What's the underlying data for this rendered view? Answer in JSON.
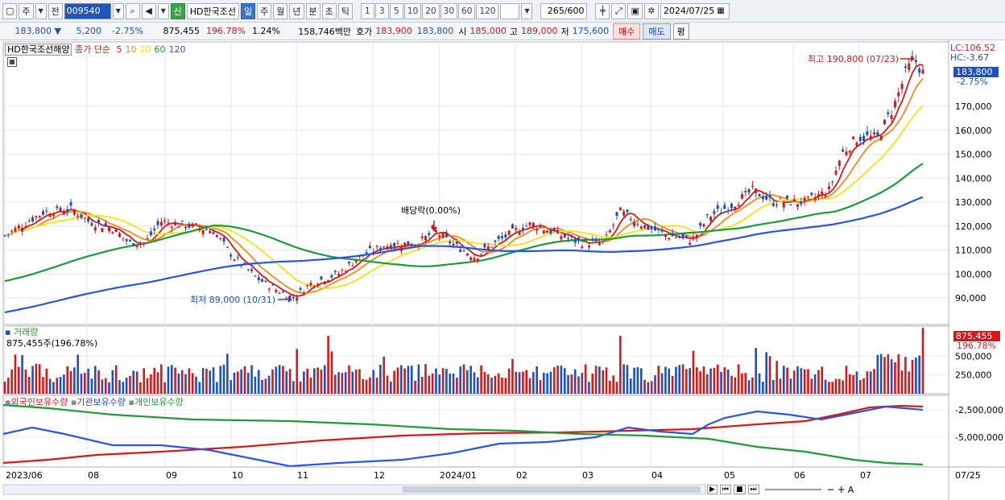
{
  "toolbar": {
    "market": "주",
    "prev_label": "전",
    "code": "009540",
    "badge": "신",
    "stock_name": "HD한국조선",
    "periods": [
      "일",
      "주",
      "월",
      "년",
      "분",
      "초",
      "틱"
    ],
    "active_period": "일",
    "intervals": [
      "1",
      "3",
      "5",
      "10",
      "20",
      "30",
      "60",
      "120"
    ],
    "count": "265",
    "count_total": "/600",
    "date": "2024/07/25"
  },
  "quote": {
    "price": "183,800",
    "arrow": "▼",
    "change": "5,200",
    "change_pct": "-2.75%",
    "volume": "875,455",
    "volume_ratio": "196.78%",
    "turnover": "1.24%",
    "amount": "158,746백만",
    "bid_label": "호가",
    "ask": "183,900",
    "bid": "183,800",
    "open_label": "시",
    "open": "185,000",
    "high_label": "고",
    "high": "189,000",
    "low_label": "저",
    "low": "175,600",
    "buy_label": "매수",
    "sell_label": "매도",
    "pin_label": "평"
  },
  "price_panel": {
    "name": "HD한국조선해양",
    "ma_title": "종가 단순",
    "ma_periods": [
      "5",
      "10",
      "20",
      "60",
      "120"
    ],
    "ma_colors": [
      "#d61818",
      "#f08a1a",
      "#f2e21a",
      "#1e9a36",
      "#2a56d8"
    ],
    "lc": "LC:106.52",
    "hc": "HC:-3.67",
    "current": "183,800",
    "current_pct": "-2.75%",
    "y_ticks": [
      "170,000",
      "160,000",
      "150,000",
      "140,000",
      "130,000",
      "120,000",
      "110,000",
      "100,000",
      "90,000"
    ],
    "max_label": "최고 190,800 (07/23)",
    "min_label": "최저 89,000 (10/31)",
    "dividend_label": "배당락(0.00%)"
  },
  "volume_panel": {
    "title": "거래량",
    "current": "875,455주(196.78%)",
    "badge_value": "875,455",
    "badge_pct": "196.78%",
    "y_ticks": [
      "500,000",
      "250,000"
    ]
  },
  "holding_panel": {
    "foreign_label": "외국인보유수량",
    "inst_label": "기관보유수량",
    "indiv_label": "개인보유수량",
    "y_ticks": [
      "-2,500,000",
      "-5,000,000"
    ]
  },
  "x_axis": {
    "labels": [
      "2023/06",
      "08",
      "09",
      "10",
      "11",
      "12",
      "2024/01",
      "02",
      "03",
      "04",
      "05",
      "06",
      "07"
    ],
    "right_label": "07/25"
  },
  "colors": {
    "up": "#d61818",
    "down": "#1d4fc4",
    "accent": "#3a73c9"
  }
}
